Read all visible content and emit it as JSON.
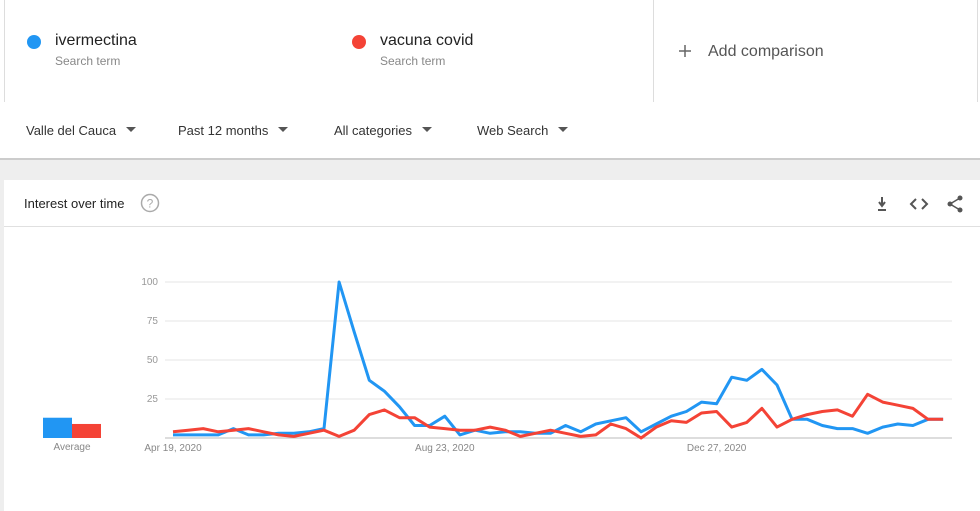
{
  "terms": [
    {
      "name": "ivermectina",
      "sub": "Search term"
    },
    {
      "name": "vacuna covid",
      "sub": "Search term"
    }
  ],
  "add_comparison": "Add comparison",
  "filters": [
    "Valle del Cauca",
    "Past 12 months",
    "All categories",
    "Web Search"
  ],
  "panel_title": "Interest over time",
  "chart_data": {
    "type": "line",
    "average_label": "Average",
    "categories": [
      "Apr 19, 2020",
      null,
      null,
      null,
      null,
      null,
      null,
      null,
      null,
      null,
      null,
      null,
      null,
      null,
      null,
      null,
      null,
      null,
      "Aug 23, 2020",
      null,
      null,
      null,
      null,
      null,
      null,
      null,
      null,
      null,
      null,
      null,
      null,
      null,
      null,
      null,
      null,
      null,
      "Dec 27, 2020",
      null,
      null,
      null,
      null,
      null,
      null,
      null,
      null,
      null,
      null,
      null,
      null,
      null,
      null,
      null
    ],
    "series": [
      {
        "name": "ivermectina",
        "color": "#2196f3",
        "average": 13,
        "values": [
          2,
          2,
          2,
          2,
          6,
          2,
          2,
          3,
          3,
          4,
          6,
          100,
          68,
          37,
          30,
          20,
          8,
          8,
          14,
          2,
          5,
          3,
          4,
          4,
          3,
          3,
          8,
          4,
          9,
          11,
          13,
          4,
          9,
          14,
          17,
          23,
          22,
          39,
          37,
          44,
          34,
          12,
          12,
          8,
          6,
          6,
          3,
          7,
          9,
          8,
          12,
          12
        ]
      },
      {
        "name": "vacuna covid",
        "color": "#f44336",
        "average": 9,
        "values": [
          4,
          5,
          6,
          4,
          5,
          6,
          4,
          2,
          1,
          3,
          5,
          1,
          5,
          15,
          18,
          13,
          13,
          7,
          6,
          5,
          5,
          7,
          5,
          1,
          3,
          5,
          3,
          1,
          2,
          9,
          6,
          0,
          7,
          11,
          10,
          16,
          17,
          7,
          10,
          19,
          7,
          12,
          15,
          17,
          18,
          14,
          28,
          23,
          21,
          19,
          12,
          12
        ]
      }
    ],
    "ylim": [
      0,
      100
    ],
    "yticks": [
      25,
      50,
      75,
      100
    ],
    "grid": true
  }
}
